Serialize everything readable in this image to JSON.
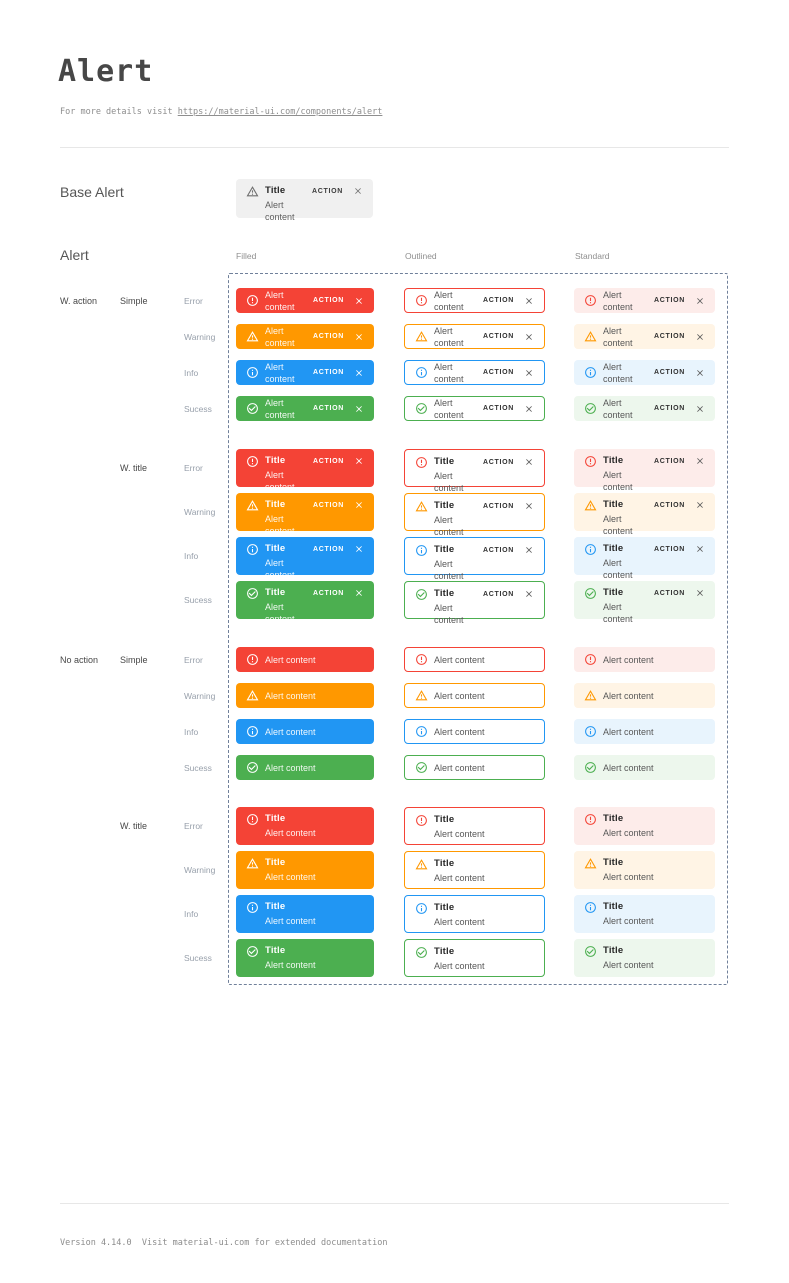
{
  "header": {
    "title": "Alert",
    "subtitle_prefix": "For more details visit ",
    "subtitle_link": "https://material-ui.com/components/alert"
  },
  "base_alert_section": {
    "label": "Base Alert",
    "alert": {
      "title": "Title",
      "content": "Alert content",
      "action": "ACTION",
      "icon": "warning-triangle-icon"
    }
  },
  "alert_grid": {
    "section_label": "Alert",
    "column_headers": [
      "Filled",
      "Outlined",
      "Standard"
    ],
    "row_groups": [
      {
        "label": "W. action",
        "with_action": true,
        "subgroups": [
          {
            "label": "Simple",
            "with_title": false
          },
          {
            "label": "W. title",
            "with_title": true
          }
        ]
      },
      {
        "label": "No action",
        "with_action": false,
        "subgroups": [
          {
            "label": "Simple",
            "with_title": false
          },
          {
            "label": "W. title",
            "with_title": true
          }
        ]
      }
    ],
    "severities": [
      {
        "key": "error",
        "label": "Error",
        "icon": "error-outline-icon"
      },
      {
        "key": "warning",
        "label": "Warning",
        "icon": "warning-triangle-icon"
      },
      {
        "key": "info",
        "label": "Info",
        "icon": "info-outline-icon"
      },
      {
        "key": "success",
        "label": "Sucess",
        "icon": "check-circle-icon"
      }
    ],
    "alert_text": {
      "title": "Title",
      "content": "Alert content",
      "action": "ACTION"
    },
    "close_icon": "close-icon"
  },
  "colors": {
    "error": {
      "main": "#f44336",
      "standard_bg": "#fdecea"
    },
    "warning": {
      "main": "#ff9800",
      "standard_bg": "#fff4e5"
    },
    "info": {
      "main": "#2196f3",
      "standard_bg": "#e8f4fd"
    },
    "success": {
      "main": "#4caf50",
      "standard_bg": "#edf7ed"
    },
    "base_bg": "#f0f0f0",
    "dashed_border": "#70809a"
  },
  "footer": {
    "text": "Version 4.14.0  Visit material-ui.com for extended documentation"
  }
}
